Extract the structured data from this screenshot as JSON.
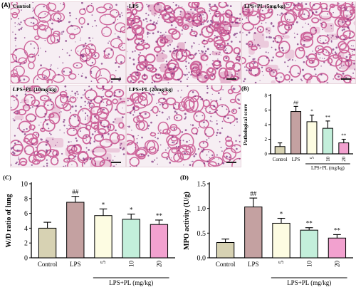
{
  "panel_a": {
    "label": "(A)",
    "images": [
      {
        "label": "Control",
        "tissue": "normal"
      },
      {
        "label": "LPS",
        "tissue": "dense"
      },
      {
        "label": "LPS+PL (5mg/kg)",
        "tissue": "medium"
      },
      {
        "label": "LPS+PL (10mg/kg)",
        "tissue": "medium"
      },
      {
        "label": "LPS+PL (20mg/kg)",
        "tissue": "light"
      }
    ]
  },
  "colors": {
    "control": "#d7d2b3",
    "lps": "#c4a1a1",
    "pl5": "#fdfce2",
    "pl10": "#c3efdb",
    "pl20": "#f2a1cf",
    "tissue_bg": "#f6eef3",
    "tissue_cell": "#c8508e"
  },
  "chart_data": [
    {
      "panel": "(B)",
      "type": "bar",
      "ylabel": "Pathological score",
      "ylim": [
        0,
        8
      ],
      "yticks": [
        0,
        2,
        4,
        6,
        8
      ],
      "categories": [
        "Control",
        "LPS",
        "5",
        "10",
        "20"
      ],
      "group_label": "LPS+PL (mg/kg)",
      "values": [
        1.0,
        5.8,
        4.4,
        3.5,
        1.5
      ],
      "errors": [
        0.5,
        0.7,
        0.9,
        1.0,
        0.5
      ],
      "annotations": [
        "",
        "##",
        "*",
        "**",
        "**"
      ]
    },
    {
      "panel": "(C)",
      "type": "bar",
      "ylabel": "W/D ratio of lung",
      "ylim": [
        0,
        10
      ],
      "yticks": [
        0,
        2,
        4,
        6,
        8,
        10
      ],
      "categories": [
        "Control",
        "LPS",
        "5",
        "10",
        "20"
      ],
      "group_label": "LPS+PL (mg/kg)",
      "values": [
        4.0,
        7.5,
        5.7,
        5.2,
        4.5
      ],
      "errors": [
        0.8,
        0.8,
        0.9,
        0.7,
        0.6
      ],
      "annotations": [
        "",
        "##",
        "*",
        "*",
        "**"
      ]
    },
    {
      "panel": "(D)",
      "type": "bar",
      "ylabel": "MPO  activity (U/g)",
      "ylim": [
        0,
        1.5
      ],
      "yticks": [
        "0.0",
        "0.5",
        "1.0",
        "1.5"
      ],
      "categories": [
        "Control",
        "LPS",
        "5",
        "10",
        "20"
      ],
      "group_label": "LPS+PL (mg/kg)",
      "values": [
        0.31,
        1.03,
        0.7,
        0.56,
        0.4
      ],
      "errors": [
        0.07,
        0.18,
        0.1,
        0.05,
        0.07
      ],
      "annotations": [
        "",
        "##",
        "*",
        "**",
        "**"
      ]
    }
  ]
}
